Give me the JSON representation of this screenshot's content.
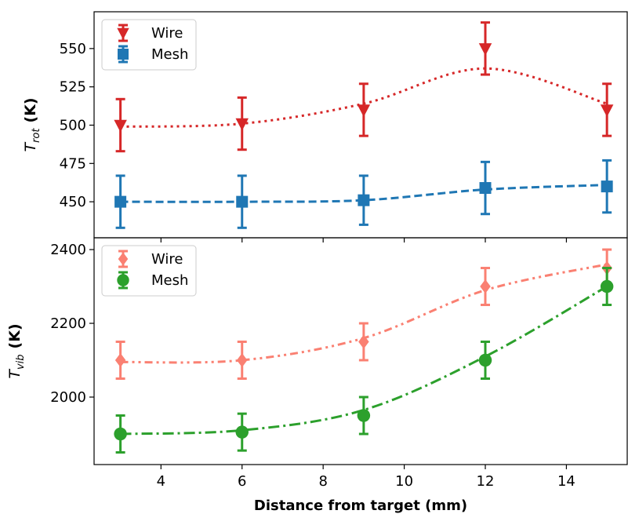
{
  "chart_data": [
    {
      "type": "line",
      "ylabel": {
        "symbol": "T",
        "subscript": "rot",
        "unit": "(K)"
      },
      "xlim": [
        2.35,
        15.5
      ],
      "xticks": [
        4,
        6,
        8,
        10,
        12,
        14
      ],
      "ylim": [
        426.5,
        574
      ],
      "yticks": [
        450,
        475,
        500,
        525,
        550
      ],
      "legend": "upper left",
      "x": [
        3,
        6,
        9,
        12,
        15
      ],
      "series": [
        {
          "name": "Wire",
          "color": "#d62728",
          "marker": "triangle-down",
          "linestyle": "dotted",
          "values": [
            500,
            501,
            510,
            550,
            510
          ],
          "errors": [
            17,
            17,
            17,
            17,
            17
          ],
          "fit": [
            499,
            501,
            514,
            537,
            514
          ]
        },
        {
          "name": "Mesh",
          "color": "#1f77b4",
          "marker": "square",
          "linestyle": "dashed",
          "values": [
            450,
            450,
            451,
            459,
            460
          ],
          "errors": [
            17,
            17,
            16,
            17,
            17
          ],
          "fit": [
            450,
            450,
            451,
            458,
            461
          ]
        }
      ]
    },
    {
      "type": "line",
      "ylabel": {
        "symbol": "T",
        "subscript": "vib",
        "unit": "(K)"
      },
      "xlabel": "Distance from target (mm)",
      "xlim": [
        2.35,
        15.5
      ],
      "xticks": [
        4,
        6,
        8,
        10,
        12,
        14
      ],
      "ylim": [
        1817,
        2432
      ],
      "yticks": [
        2000,
        2200,
        2400
      ],
      "legend": "upper left",
      "x": [
        3,
        6,
        9,
        12,
        15
      ],
      "series": [
        {
          "name": "Wire",
          "color": "#fa8072",
          "marker": "diamond",
          "linestyle": "dashdotdot",
          "values": [
            2100,
            2100,
            2150,
            2300,
            2350
          ],
          "errors": [
            50,
            50,
            50,
            50,
            50
          ],
          "fit": [
            2095,
            2100,
            2160,
            2290,
            2360
          ]
        },
        {
          "name": "Mesh",
          "color": "#2ca02c",
          "marker": "circle",
          "linestyle": "dashdot",
          "values": [
            1900,
            1905,
            1950,
            2100,
            2300
          ],
          "errors": [
            50,
            50,
            50,
            50,
            50
          ],
          "fit": [
            1900,
            1910,
            1965,
            2110,
            2300
          ]
        }
      ]
    }
  ]
}
